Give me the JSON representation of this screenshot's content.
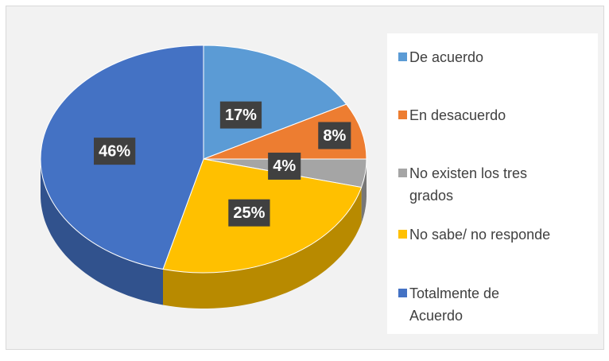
{
  "chart_data": {
    "type": "pie",
    "categories": [
      "De acuerdo",
      "En desacuerdo",
      "No existen los tres grados",
      "No sabe/ no responde",
      "Totalmente de Acuerdo"
    ],
    "values": [
      17,
      8,
      4,
      25,
      46
    ],
    "value_labels": [
      "17%",
      "8%",
      "4%",
      "25%",
      "46%"
    ],
    "colors": [
      "#5B9BD5",
      "#ED7D31",
      "#A5A5A5",
      "#FFC000",
      "#4472C4"
    ],
    "legend": "right"
  }
}
